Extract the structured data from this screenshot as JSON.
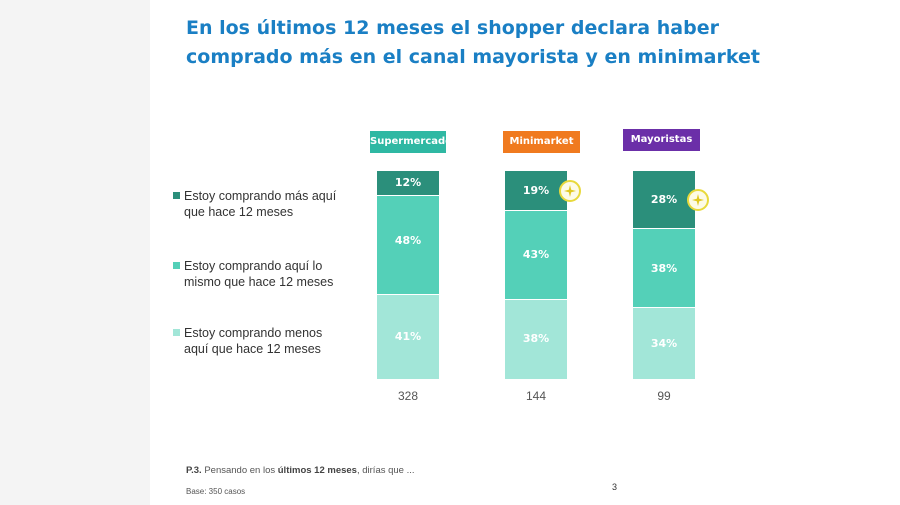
{
  "slide": {
    "title_line1": "En los últimos 12 meses el shopper declara haber",
    "title_line2": "comprado más en el canal mayorista y en minimarket",
    "footnote_prefix": "P.3.",
    "footnote_pre": " Pensando en los ",
    "footnote_bold": "últimos 12 meses",
    "footnote_post": ", dirías que ...",
    "base_note": "Base: 350 casos",
    "page_number": "3"
  },
  "chart_data": {
    "type": "bar",
    "stacked": true,
    "percent": true,
    "categories": [
      "Supermercado",
      "Minimarket",
      "Mayoristas"
    ],
    "category_colors": [
      "#2fb8a3",
      "#f07a1f",
      "#6b2fa8"
    ],
    "series": [
      {
        "name": "Estoy comprando más aquí que hace 12 meses",
        "color": "#2b8f7b",
        "values": [
          12,
          19,
          28
        ],
        "labels": [
          "12%",
          "19%",
          "28%"
        ],
        "label_color": "#ffffff"
      },
      {
        "name": "Estoy comprando aquí lo mismo que hace 12 meses",
        "color": "#54d0b8",
        "values": [
          48,
          43,
          38
        ],
        "labels": [
          "48%",
          "43%",
          "38%"
        ],
        "label_color": "#ffffff"
      },
      {
        "name": "Estoy comprando menos aquí que hace 12 meses",
        "color": "#a2e6d8",
        "values": [
          41,
          38,
          34
        ],
        "labels": [
          "41%",
          "38%",
          "34%"
        ],
        "label_color": "#ffffff"
      }
    ],
    "legend_lines": [
      [
        "Estoy comprando más aquí",
        "que hace 12 meses"
      ],
      [
        "Estoy comprando aquí lo",
        "mismo que hace 12 meses"
      ],
      [
        "Estoy comprando menos",
        "aquí que hace 12 meses"
      ]
    ],
    "base_sizes": [
      "328",
      "144",
      "99"
    ],
    "highlight_icon": "sparkle-icon",
    "highlights": [
      [
        0,
        1
      ],
      [
        0,
        2
      ]
    ]
  }
}
